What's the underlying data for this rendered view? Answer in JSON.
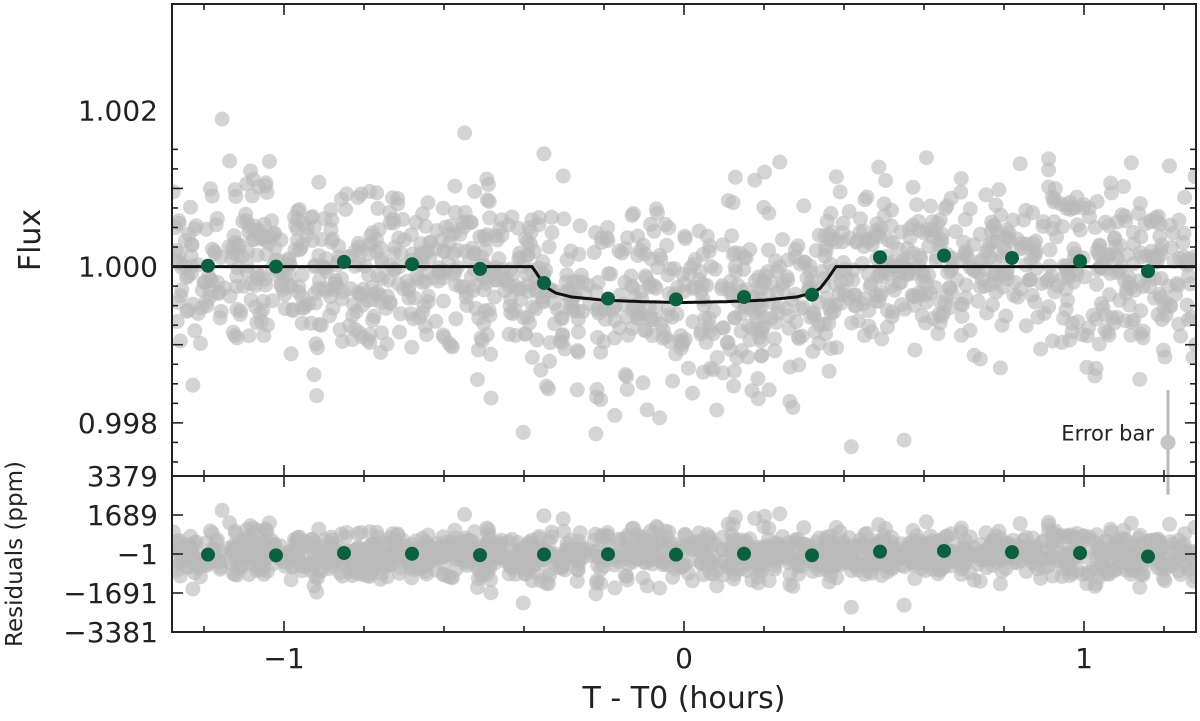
{
  "chart_data": [
    {
      "type": "scatter",
      "panel": "top",
      "ylabel": "Flux",
      "xlim": [
        -1.28,
        1.28
      ],
      "ylim": [
        0.99732,
        1.00336
      ],
      "y_ticks": [
        {
          "value": 0.998,
          "label": "0.998"
        },
        {
          "value": 1.0,
          "label": "1.000"
        },
        {
          "value": 1.002,
          "label": "1.002"
        }
      ],
      "model": {
        "name": "transit model",
        "x": [
          -1.28,
          -0.38,
          -0.36,
          -0.34,
          -0.32,
          -0.28,
          -0.2,
          -0.1,
          0,
          0.1,
          0.2,
          0.28,
          0.32,
          0.34,
          0.36,
          0.38,
          1.28
        ],
        "y": [
          1.0,
          1.0,
          0.99985,
          0.99972,
          0.99966,
          0.99961,
          0.99957,
          0.99955,
          0.99954,
          0.99955,
          0.99957,
          0.99961,
          0.99966,
          0.99972,
          0.99985,
          1.0,
          1.0
        ]
      },
      "binned": {
        "name": "binned data",
        "x": [
          -1.19,
          -1.02,
          -0.85,
          -0.68,
          -0.51,
          -0.35,
          -0.19,
          -0.02,
          0.15,
          0.32,
          0.49,
          0.65,
          0.82,
          0.99,
          1.16
        ],
        "y": [
          1.00001,
          1.0,
          1.00006,
          1.00003,
          0.99997,
          0.99979,
          0.99959,
          0.99958,
          0.99961,
          0.99964,
          1.00012,
          1.00014,
          1.00011,
          1.00007,
          0.99994
        ]
      },
      "raw": {
        "name": "unbinned data",
        "count": 1400,
        "scatter_sigma": 0.00055,
        "seed": 12345
      },
      "annotation": {
        "text": "Error bar",
        "x": 1.21,
        "y": 0.99775,
        "err": 0.00067
      }
    },
    {
      "type": "scatter",
      "panel": "bottom",
      "ylabel": "Residuals (ppm)",
      "xlabel": "T - T0 (hours)",
      "xlim": [
        -1.28,
        1.28
      ],
      "ylim": [
        -3381,
        3379
      ],
      "y_ticks": [
        {
          "value": 3379,
          "label": "3379"
        },
        {
          "value": 1689,
          "label": "1689"
        },
        {
          "value": -1,
          "label": "−1"
        },
        {
          "value": -1691,
          "label": "−1691"
        },
        {
          "value": -3381,
          "label": "−3381"
        }
      ],
      "x_ticks": [
        {
          "value": -1,
          "label": "−1"
        },
        {
          "value": 0,
          "label": "0"
        },
        {
          "value": 1,
          "label": "1"
        }
      ],
      "binned": {
        "name": "binned residuals",
        "x": [
          -1.19,
          -1.02,
          -0.85,
          -0.68,
          -0.51,
          -0.35,
          -0.19,
          -0.02,
          0.15,
          0.32,
          0.49,
          0.65,
          0.82,
          0.99,
          1.16
        ],
        "y": [
          -30,
          -60,
          40,
          10,
          -50,
          -20,
          -10,
          -30,
          10,
          -60,
          100,
          130,
          80,
          40,
          -110
        ]
      }
    }
  ]
}
